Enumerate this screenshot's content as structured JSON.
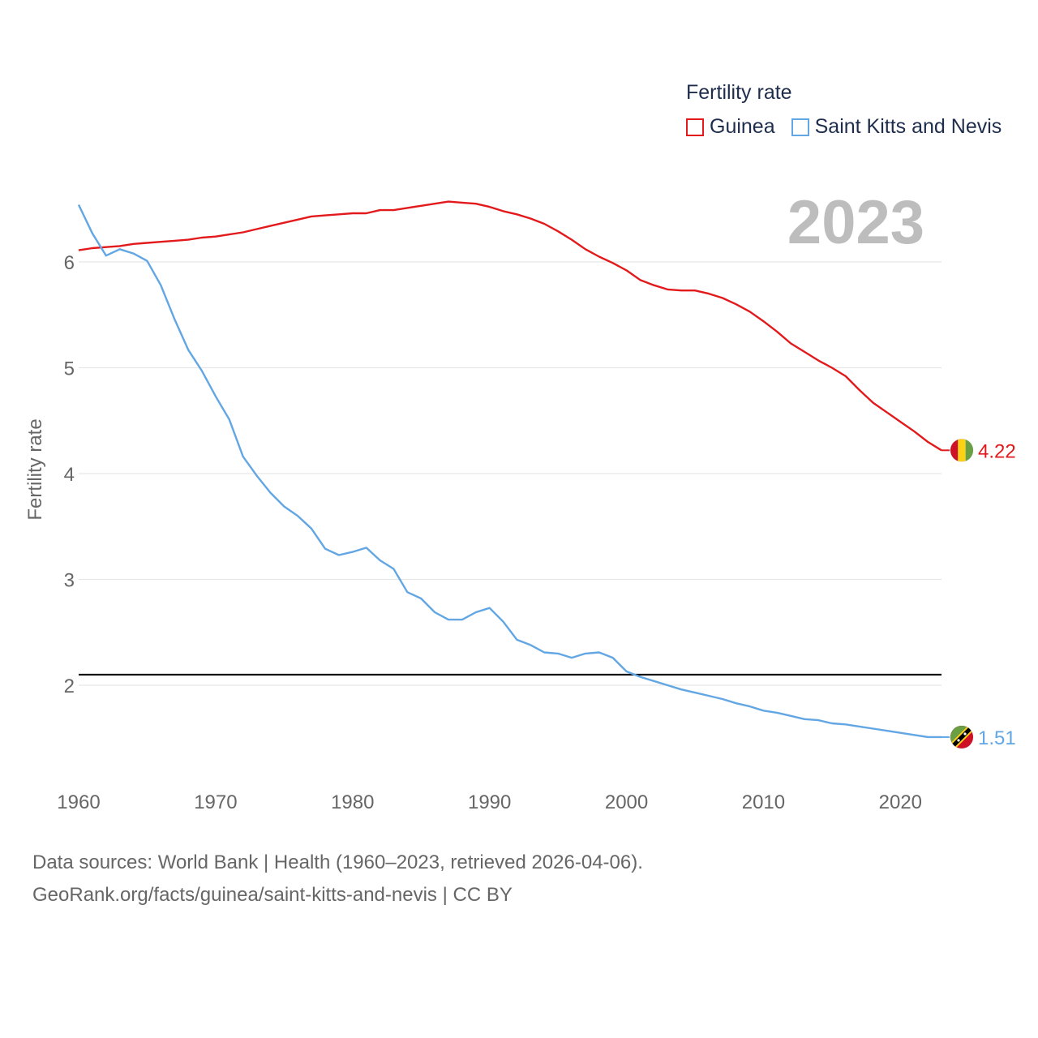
{
  "legend": {
    "title": "Fertility rate",
    "items": [
      {
        "label": "Guinea",
        "color": "#e31a1c"
      },
      {
        "label": "Saint Kitts and Nevis",
        "color": "#62a6e4"
      }
    ]
  },
  "footer": {
    "line1": "Data sources: World Bank | Health (1960–2023, retrieved 2026-04-06).",
    "line2": "GeoRank.org/facts/guinea/saint-kitts-and-nevis | CC BY"
  },
  "chart_data": {
    "type": "line",
    "title": "Fertility rate",
    "year_label": "2023",
    "ylabel": "Fertility rate",
    "xlabel": "",
    "xlim": [
      1960,
      2023
    ],
    "ylim": [
      1.2,
      6.7
    ],
    "x_ticks": [
      1960,
      1970,
      1980,
      1990,
      2000,
      2010,
      2020
    ],
    "y_ticks": [
      2,
      3,
      4,
      5,
      6
    ],
    "grid": true,
    "reference_line": {
      "y": 2.1,
      "color": "#000000"
    },
    "x": [
      1960,
      1961,
      1962,
      1963,
      1964,
      1965,
      1966,
      1967,
      1968,
      1969,
      1970,
      1971,
      1972,
      1973,
      1974,
      1975,
      1976,
      1977,
      1978,
      1979,
      1980,
      1981,
      1982,
      1983,
      1984,
      1985,
      1986,
      1987,
      1988,
      1989,
      1990,
      1991,
      1992,
      1993,
      1994,
      1995,
      1996,
      1997,
      1998,
      1999,
      2000,
      2001,
      2002,
      2003,
      2004,
      2005,
      2006,
      2007,
      2008,
      2009,
      2010,
      2011,
      2012,
      2013,
      2014,
      2015,
      2016,
      2017,
      2018,
      2019,
      2020,
      2021,
      2022,
      2023
    ],
    "series": [
      {
        "name": "Guinea",
        "color": "#e31a1c",
        "end_label": "4.22",
        "values": [
          6.11,
          6.13,
          6.14,
          6.15,
          6.17,
          6.18,
          6.19,
          6.2,
          6.21,
          6.23,
          6.24,
          6.26,
          6.28,
          6.31,
          6.34,
          6.37,
          6.4,
          6.43,
          6.44,
          6.45,
          6.46,
          6.46,
          6.49,
          6.49,
          6.51,
          6.53,
          6.55,
          6.57,
          6.56,
          6.55,
          6.52,
          6.48,
          6.45,
          6.41,
          6.36,
          6.29,
          6.21,
          6.12,
          6.05,
          5.99,
          5.92,
          5.83,
          5.78,
          5.74,
          5.73,
          5.73,
          5.7,
          5.66,
          5.6,
          5.53,
          5.44,
          5.34,
          5.23,
          5.15,
          5.07,
          5.0,
          4.92,
          4.79,
          4.67,
          4.58,
          4.49,
          4.4,
          4.3,
          4.22
        ]
      },
      {
        "name": "Saint Kitts and Nevis",
        "color": "#62a6e4",
        "end_label": "1.51",
        "values": [
          6.54,
          6.27,
          6.06,
          6.12,
          6.08,
          6.01,
          5.78,
          5.46,
          5.17,
          4.97,
          4.73,
          4.51,
          4.16,
          3.98,
          3.82,
          3.69,
          3.6,
          3.48,
          3.29,
          3.23,
          3.26,
          3.3,
          3.18,
          3.1,
          2.88,
          2.82,
          2.69,
          2.62,
          2.62,
          2.69,
          2.73,
          2.6,
          2.43,
          2.38,
          2.31,
          2.3,
          2.26,
          2.3,
          2.31,
          2.26,
          2.13,
          2.08,
          2.04,
          2.0,
          1.96,
          1.93,
          1.9,
          1.87,
          1.83,
          1.8,
          1.76,
          1.74,
          1.71,
          1.68,
          1.67,
          1.64,
          1.63,
          1.61,
          1.59,
          1.57,
          1.55,
          1.53,
          1.51,
          1.51
        ]
      }
    ]
  }
}
